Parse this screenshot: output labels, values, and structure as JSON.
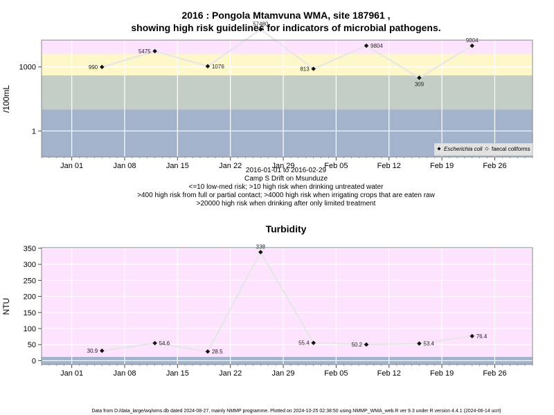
{
  "page": {
    "footer": "Data from D:/data_large/wq/wms.db dated 2024-08-27, mainly NMMP programme. Plotted on 2024-10-25 02:38:50 using NMMP_WMA_web.R ver 9.3 under R version 4.4.1 (2024-06-14 ucrt)"
  },
  "chart_data": [
    {
      "type": "line",
      "title_line1": "2016 : Pongola Mtamvuna WMA, site 187961 ,",
      "title_line2": "showing high risk guidelines for indicators of microbial pathogens.",
      "ylabel": "/100mL",
      "yscale": "log",
      "ylim": [
        0.06,
        18000
      ],
      "ytick_values": [
        1,
        1000
      ],
      "ytick_labels": [
        "1",
        "1000"
      ],
      "xlim": [
        "2015-12-28",
        "2016-03-02"
      ],
      "xtick_dates": [
        "2016-01-01",
        "2016-01-08",
        "2016-01-15",
        "2016-01-22",
        "2016-01-29",
        "2016-02-05",
        "2016-02-12",
        "2016-02-19",
        "2016-02-26"
      ],
      "xtick_labels": [
        "Jan 01",
        "Jan 08",
        "Jan 15",
        "Jan 22",
        "Jan 29",
        "Feb 05",
        "Feb 12",
        "Feb 19",
        "Feb 26"
      ],
      "grid": true,
      "bands": [
        {
          "from": 0.06,
          "to": 10,
          "color": "#a3b3cc"
        },
        {
          "from": 10,
          "to": 400,
          "color": "#c4cec4"
        },
        {
          "from": 400,
          "to": 4000,
          "color": "#fdf7c9"
        },
        {
          "from": 4000,
          "to": 20000,
          "color": "#fde3fd"
        },
        {
          "from": 20000,
          "to": 18000000,
          "color": "#ffb6c1"
        }
      ],
      "series": [
        {
          "name": "Escherichia coli",
          "dates": [
            "2016-01-05",
            "2016-01-12",
            "2016-01-19",
            "2016-01-26",
            "2016-02-02",
            "2016-02-09",
            "2016-02-16",
            "2016-02-23"
          ],
          "values": [
            990,
            5475,
            1076,
            57480,
            813,
            9804,
            309,
            9804
          ],
          "labels": [
            "990",
            "5475",
            "1076",
            "57480",
            "813",
            "9804",
            "309",
            "9804"
          ],
          "label_pos": [
            "left",
            "left",
            "right",
            "top",
            "left",
            "right",
            "bottom",
            "top"
          ]
        }
      ],
      "legend": {
        "position": "bottom-right",
        "entries": [
          "Escherichia coli",
          "faecal coliforms"
        ]
      },
      "caption": [
        "2016-01-01 to 2016-02-29",
        "Camp S Drift on Msunduze",
        "<=10 low-med risk; >10 high risk when drinking untreated water",
        ">400 high risk from full or partial contact; >4000 high risk when irrigating crops that are eaten raw",
        ">20000 high risk when drinking after only limited treatment"
      ]
    },
    {
      "type": "line",
      "title": "Turbidity",
      "ylabel": "NTU",
      "yscale": "linear",
      "ylim": [
        -12,
        352
      ],
      "ytick_values": [
        0,
        50,
        100,
        150,
        200,
        250,
        300,
        350
      ],
      "xlim": [
        "2015-12-28",
        "2016-03-02"
      ],
      "xtick_dates": [
        "2016-01-01",
        "2016-01-08",
        "2016-01-15",
        "2016-01-22",
        "2016-01-29",
        "2016-02-05",
        "2016-02-12",
        "2016-02-19",
        "2016-02-26"
      ],
      "xtick_labels": [
        "Jan 01",
        "Jan 08",
        "Jan 15",
        "Jan 22",
        "Jan 29",
        "Feb 05",
        "Feb 12",
        "Feb 19",
        "Feb 26"
      ],
      "grid": true,
      "bands": [
        {
          "from": -12,
          "to": 12,
          "color": "#a3b3cc"
        },
        {
          "from": 12,
          "to": 352,
          "color": "#fde3fd"
        }
      ],
      "series": [
        {
          "dates": [
            "2016-01-05",
            "2016-01-12",
            "2016-01-19",
            "2016-01-26",
            "2016-02-02",
            "2016-02-09",
            "2016-02-16",
            "2016-02-23"
          ],
          "values": [
            30.9,
            54.6,
            28.5,
            338,
            55.4,
            50.2,
            53.4,
            76.4
          ],
          "labels": [
            "30.9",
            "54.6",
            "28.5",
            "338",
            "55.4",
            "50.2",
            "53.4",
            "76.4"
          ],
          "label_pos": [
            "left",
            "right",
            "right",
            "top",
            "left",
            "left",
            "right",
            "right"
          ]
        }
      ]
    }
  ]
}
